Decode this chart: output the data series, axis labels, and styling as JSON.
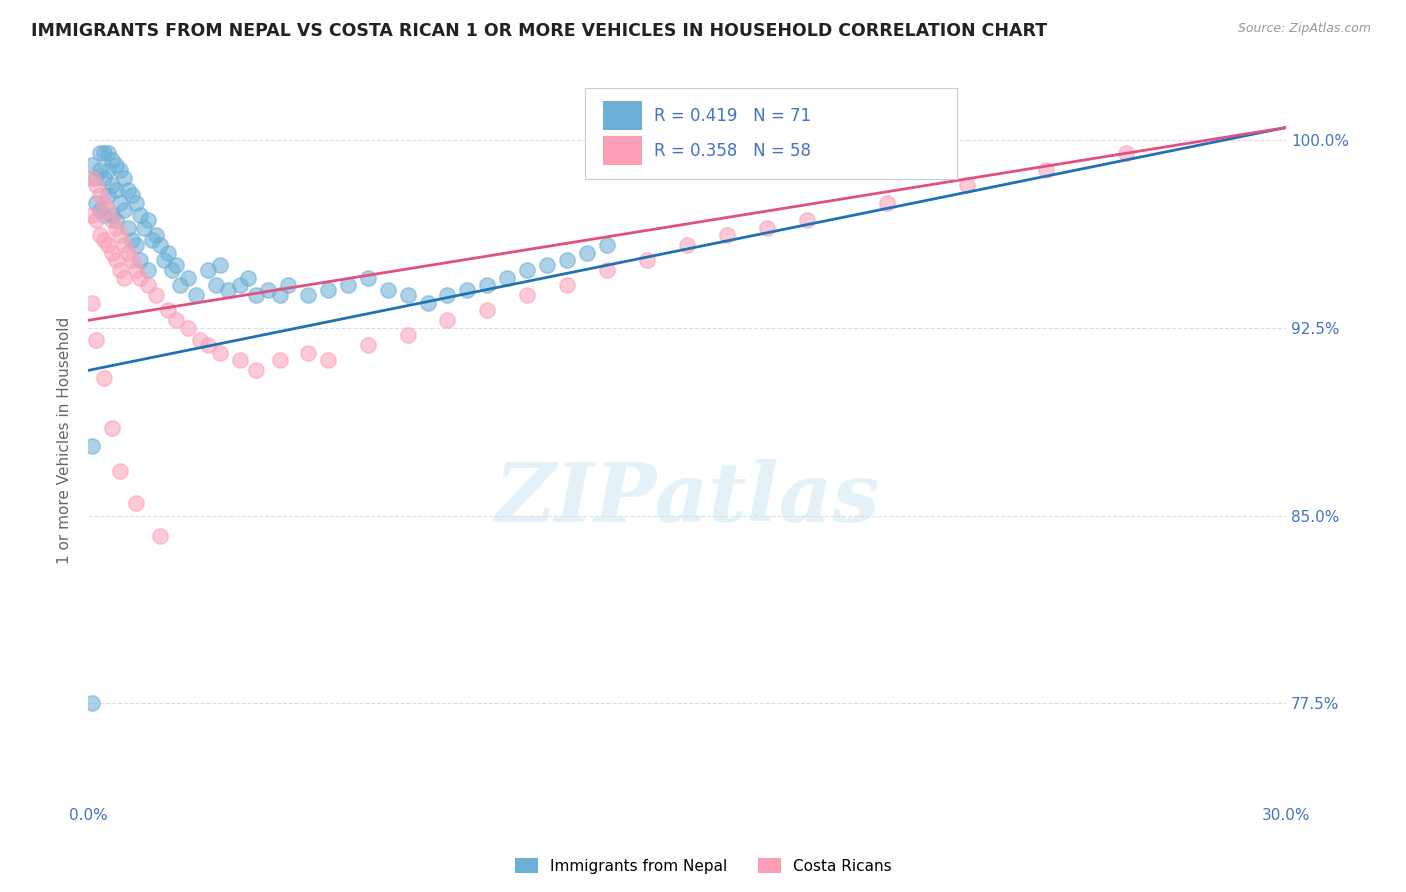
{
  "title": "IMMIGRANTS FROM NEPAL VS COSTA RICAN 1 OR MORE VEHICLES IN HOUSEHOLD CORRELATION CHART",
  "source": "Source: ZipAtlas.com",
  "ylabel_label": "1 or more Vehicles in Household",
  "legend_label_1": "Immigrants from Nepal",
  "legend_label_2": "Costa Ricans",
  "R1": 0.419,
  "N1": 71,
  "R2": 0.358,
  "N2": 58,
  "blue_color": "#6baed6",
  "pink_color": "#fa9fb5",
  "blue_line_color": "#2171b5",
  "pink_line_color": "#e05080",
  "x_min": 0.0,
  "x_max": 0.3,
  "y_min": 0.735,
  "y_max": 1.025,
  "y_ticks": [
    0.775,
    0.85,
    0.925,
    1.0
  ],
  "y_tick_labels": [
    "77.5%",
    "85.0%",
    "92.5%",
    "100.0%"
  ],
  "watermark_text": "ZIPatlas",
  "background_color": "#ffffff",
  "grid_color": "#dddddd",
  "nepal_x": [
    0.001,
    0.002,
    0.002,
    0.003,
    0.003,
    0.003,
    0.004,
    0.004,
    0.004,
    0.005,
    0.005,
    0.005,
    0.006,
    0.006,
    0.006,
    0.007,
    0.007,
    0.007,
    0.008,
    0.008,
    0.009,
    0.009,
    0.01,
    0.01,
    0.011,
    0.011,
    0.012,
    0.012,
    0.013,
    0.013,
    0.014,
    0.015,
    0.015,
    0.016,
    0.017,
    0.018,
    0.019,
    0.02,
    0.021,
    0.022,
    0.023,
    0.025,
    0.027,
    0.03,
    0.032,
    0.033,
    0.035,
    0.038,
    0.04,
    0.042,
    0.045,
    0.048,
    0.05,
    0.055,
    0.06,
    0.065,
    0.07,
    0.075,
    0.08,
    0.085,
    0.09,
    0.095,
    0.1,
    0.105,
    0.11,
    0.115,
    0.12,
    0.125,
    0.13,
    0.001,
    0.001
  ],
  "nepal_y": [
    0.99,
    0.985,
    0.975,
    0.995,
    0.988,
    0.972,
    0.995,
    0.985,
    0.97,
    0.995,
    0.988,
    0.978,
    0.992,
    0.982,
    0.97,
    0.99,
    0.98,
    0.968,
    0.988,
    0.975,
    0.985,
    0.972,
    0.98,
    0.965,
    0.978,
    0.96,
    0.975,
    0.958,
    0.97,
    0.952,
    0.965,
    0.968,
    0.948,
    0.96,
    0.962,
    0.958,
    0.952,
    0.955,
    0.948,
    0.95,
    0.942,
    0.945,
    0.938,
    0.948,
    0.942,
    0.95,
    0.94,
    0.942,
    0.945,
    0.938,
    0.94,
    0.938,
    0.942,
    0.938,
    0.94,
    0.942,
    0.945,
    0.94,
    0.938,
    0.935,
    0.938,
    0.94,
    0.942,
    0.945,
    0.948,
    0.95,
    0.952,
    0.955,
    0.958,
    0.878,
    0.775
  ],
  "costa_x": [
    0.001,
    0.001,
    0.002,
    0.002,
    0.003,
    0.003,
    0.004,
    0.004,
    0.005,
    0.005,
    0.006,
    0.006,
    0.007,
    0.007,
    0.008,
    0.008,
    0.009,
    0.009,
    0.01,
    0.011,
    0.012,
    0.013,
    0.015,
    0.017,
    0.02,
    0.022,
    0.025,
    0.028,
    0.03,
    0.033,
    0.038,
    0.042,
    0.048,
    0.055,
    0.06,
    0.07,
    0.08,
    0.09,
    0.1,
    0.11,
    0.12,
    0.13,
    0.14,
    0.15,
    0.16,
    0.17,
    0.18,
    0.2,
    0.22,
    0.24,
    0.26,
    0.001,
    0.002,
    0.004,
    0.006,
    0.008,
    0.012,
    0.018
  ],
  "costa_y": [
    0.985,
    0.97,
    0.982,
    0.968,
    0.978,
    0.962,
    0.975,
    0.96,
    0.972,
    0.958,
    0.968,
    0.955,
    0.965,
    0.952,
    0.962,
    0.948,
    0.958,
    0.945,
    0.955,
    0.952,
    0.948,
    0.945,
    0.942,
    0.938,
    0.932,
    0.928,
    0.925,
    0.92,
    0.918,
    0.915,
    0.912,
    0.908,
    0.912,
    0.915,
    0.912,
    0.918,
    0.922,
    0.928,
    0.932,
    0.938,
    0.942,
    0.948,
    0.952,
    0.958,
    0.962,
    0.965,
    0.968,
    0.975,
    0.982,
    0.988,
    0.995,
    0.935,
    0.92,
    0.905,
    0.885,
    0.868,
    0.855,
    0.842
  ],
  "blue_line_x0": 0.0,
  "blue_line_y0": 0.908,
  "blue_line_x1": 0.3,
  "blue_line_y1": 1.005,
  "pink_line_x0": 0.0,
  "pink_line_y0": 0.928,
  "pink_line_x1": 0.3,
  "pink_line_y1": 1.005
}
